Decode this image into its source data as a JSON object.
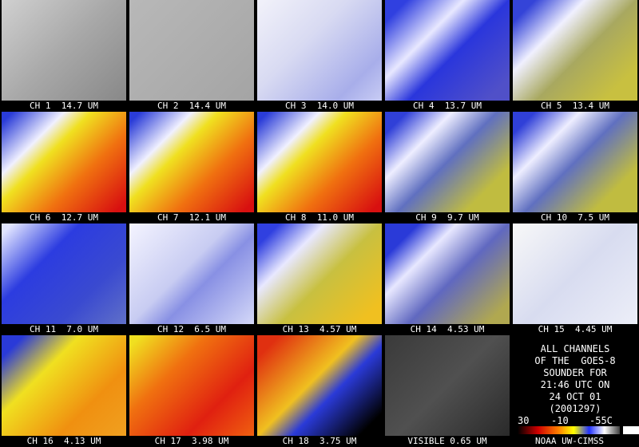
{
  "panels": [
    {
      "label": "CH 1  14.7 UM"
    },
    {
      "label": "CH 2  14.4 UM"
    },
    {
      "label": "CH 3  14.0 UM"
    },
    {
      "label": "CH 4  13.7 UM"
    },
    {
      "label": "CH 5  13.4 UM"
    },
    {
      "label": "CH 6  12.7 UM"
    },
    {
      "label": "CH 7  12.1 UM"
    },
    {
      "label": "CH 8  11.0 UM"
    },
    {
      "label": "CH 9  9.7 UM"
    },
    {
      "label": "CH 10  7.5 UM"
    },
    {
      "label": "CH 11  7.0 UM"
    },
    {
      "label": "CH 12  6.5 UM"
    },
    {
      "label": "CH 13  4.57 UM"
    },
    {
      "label": "CH 14  4.53 UM"
    },
    {
      "label": "CH 15  4.45 UM"
    },
    {
      "label": "CH 16  4.13 UM"
    },
    {
      "label": "CH 17  3.98 UM"
    },
    {
      "label": "CH 18  3.75 UM"
    },
    {
      "label": "VISIBLE 0.65 UM"
    }
  ],
  "caption": {
    "lines": [
      "ALL CHANNELS",
      "OF THE  GOES-8",
      "SOUNDER FOR",
      "21:46 UTC ON",
      "24 OCT 01",
      "(2001297)"
    ]
  },
  "colorbar": {
    "labels": [
      "30",
      "-10",
      "-55C"
    ],
    "credit": "NOAA UW-CIMSS"
  }
}
